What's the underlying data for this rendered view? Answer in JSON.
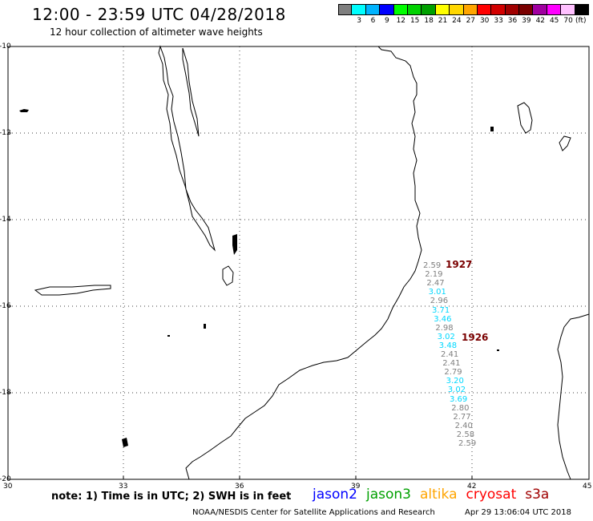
{
  "title": "12:00 - 23:59 UTC 04/28/2018",
  "subtitle": "12 hour collection of altimeter wave heights",
  "legend": {
    "unit": "(ft)",
    "bins": [
      {
        "label": "",
        "color": "#7f7f7f"
      },
      {
        "label": "3",
        "color": "#00ffff"
      },
      {
        "label": "6",
        "color": "#00b4ff"
      },
      {
        "label": "9",
        "color": "#0000ff"
      },
      {
        "label": "12",
        "color": "#00ff00"
      },
      {
        "label": "15",
        "color": "#00d200"
      },
      {
        "label": "18",
        "color": "#00a000"
      },
      {
        "label": "21",
        "color": "#ffff00"
      },
      {
        "label": "24",
        "color": "#ffd700"
      },
      {
        "label": "27",
        "color": "#ffa500"
      },
      {
        "label": "30",
        "color": "#ff0000"
      },
      {
        "label": "33",
        "color": "#d20000"
      },
      {
        "label": "36",
        "color": "#a00000"
      },
      {
        "label": "39",
        "color": "#7a0000"
      },
      {
        "label": "42",
        "color": "#a000a0"
      },
      {
        "label": "45",
        "color": "#ff00ff"
      },
      {
        "label": "70",
        "color": "#ffc0ff"
      },
      {
        "label": "",
        "color": "#000000"
      }
    ]
  },
  "axes": {
    "lat_labels": [
      "-10",
      "-12",
      "-14",
      "-16",
      "-18",
      "-20"
    ],
    "lon_labels": [
      "30",
      "33",
      "36",
      "39",
      "42",
      "45"
    ]
  },
  "observations": [
    {
      "v": "2.59",
      "color": "#7f7f7f"
    },
    {
      "v": "2.19",
      "color": "#7f7f7f"
    },
    {
      "v": "2.47",
      "color": "#7f7f7f"
    },
    {
      "v": "3.01",
      "color": "#00d8ff"
    },
    {
      "v": "2.96",
      "color": "#7f7f7f"
    },
    {
      "v": "3.71",
      "color": "#00d8ff"
    },
    {
      "v": "3.46",
      "color": "#00d8ff"
    },
    {
      "v": "2.98",
      "color": "#7f7f7f"
    },
    {
      "v": "3.02",
      "color": "#00d8ff"
    },
    {
      "v": "3.48",
      "color": "#00d8ff"
    },
    {
      "v": "2.41",
      "color": "#7f7f7f"
    },
    {
      "v": "2.41",
      "color": "#7f7f7f"
    },
    {
      "v": "2.79",
      "color": "#7f7f7f"
    },
    {
      "v": "3.20",
      "color": "#00d8ff"
    },
    {
      "v": "3.02",
      "color": "#00d8ff"
    },
    {
      "v": "3.69",
      "color": "#00d8ff"
    },
    {
      "v": "2.80",
      "color": "#7f7f7f"
    },
    {
      "v": "2.77",
      "color": "#7f7f7f"
    },
    {
      "v": "2.40",
      "color": "#7f7f7f"
    },
    {
      "v": "2.58",
      "color": "#7f7f7f"
    },
    {
      "v": "2.59",
      "color": "#7f7f7f"
    }
  ],
  "cycles": [
    "1927",
    "1926"
  ],
  "footer": {
    "note": "note: 1) Time is in UTC; 2) SWH is in feet",
    "missions": [
      {
        "name": "jason2",
        "color": "#0000ff"
      },
      {
        "name": "jason3",
        "color": "#00a000"
      },
      {
        "name": "altika",
        "color": "#ffa500"
      },
      {
        "name": "cryosat",
        "color": "#ff0000"
      },
      {
        "name": "s3a",
        "color": "#a00000"
      }
    ],
    "credit": "NOAA/NESDIS Center for Satellite Applications and Research",
    "timestamp": "Apr 29 13:06:04 UTC 2018"
  }
}
